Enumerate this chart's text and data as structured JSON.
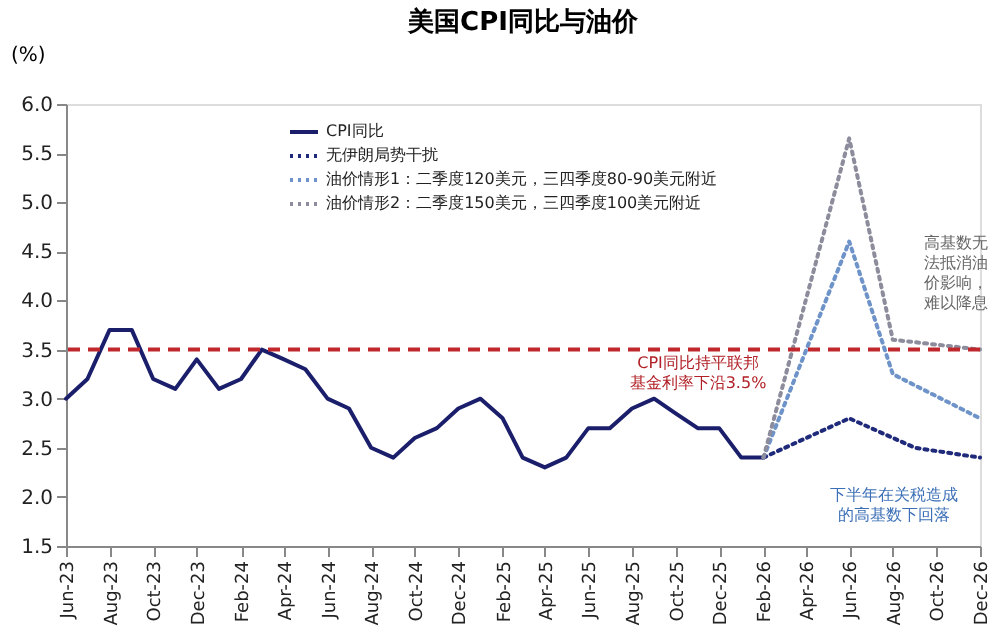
{
  "chart_data": {
    "type": "line",
    "title": "美国CPI同比与油价",
    "ylabel": "(%)",
    "xlim": [
      "2023-06",
      "2026-12"
    ],
    "xticks": [
      {
        "value": "2023-06",
        "label": "Jun-23"
      },
      {
        "value": "2023-08",
        "label": "Aug-23"
      },
      {
        "value": "2023-10",
        "label": "Oct-23"
      },
      {
        "value": "2023-12",
        "label": "Dec-23"
      },
      {
        "value": "2024-02",
        "label": "Feb-24"
      },
      {
        "value": "2024-04",
        "label": "Apr-24"
      },
      {
        "value": "2024-06",
        "label": "Jun-24"
      },
      {
        "value": "2024-08",
        "label": "Aug-24"
      },
      {
        "value": "2024-10",
        "label": "Oct-24"
      },
      {
        "value": "2024-12",
        "label": "Dec-24"
      },
      {
        "value": "2025-02",
        "label": "Feb-25"
      },
      {
        "value": "2025-04",
        "label": "Apr-25"
      },
      {
        "value": "2025-06",
        "label": "Jun-25"
      },
      {
        "value": "2025-08",
        "label": "Aug-25"
      },
      {
        "value": "2025-10",
        "label": "Oct-25"
      },
      {
        "value": "2025-12",
        "label": "Dec-25"
      },
      {
        "value": "2026-02",
        "label": "Feb-26"
      },
      {
        "value": "2026-04",
        "label": "Apr-26"
      },
      {
        "value": "2026-06",
        "label": "Jun-26"
      },
      {
        "value": "2026-08",
        "label": "Aug-26"
      },
      {
        "value": "2026-10",
        "label": "Oct-26"
      },
      {
        "value": "2026-12",
        "label": "Dec-26"
      }
    ],
    "ylim": [
      1.5,
      6.0
    ],
    "yticks": [
      {
        "value": 1.5,
        "label": "1.5"
      },
      {
        "value": 2,
        "label": "2.0"
      },
      {
        "value": 2.5,
        "label": "2.5"
      },
      {
        "value": 3,
        "label": "3.0"
      },
      {
        "value": 3.5,
        "label": "3.5"
      },
      {
        "value": 4,
        "label": "4.0"
      },
      {
        "value": 4.5,
        "label": "4.5"
      },
      {
        "value": 5,
        "label": "5.0"
      },
      {
        "value": 5.5,
        "label": "5.5"
      },
      {
        "value": 6,
        "label": "6.0"
      }
    ],
    "grid": false,
    "legend": "top",
    "series": [
      {
        "name": "CPI同比",
        "color": "#1b1f6b",
        "line_style": "solid",
        "x": [
          "2023-06",
          "2023-07",
          "2023-08",
          "2023-09",
          "2023-10",
          "2023-11",
          "2023-12",
          "2024-01",
          "2024-02",
          "2024-03",
          "2024-04",
          "2024-05",
          "2024-06",
          "2024-07",
          "2024-08",
          "2024-09",
          "2024-10",
          "2024-11",
          "2024-12",
          "2025-01",
          "2025-02",
          "2025-03",
          "2025-04",
          "2025-05",
          "2025-06",
          "2025-07",
          "2025-08",
          "2025-09",
          "2025-10",
          "2025-11",
          "2025-12",
          "2026-01",
          "2026-02"
        ],
        "values": [
          3.0,
          3.2,
          3.7,
          3.7,
          3.2,
          3.1,
          3.4,
          3.1,
          3.2,
          3.5,
          3.4,
          3.3,
          3.0,
          2.9,
          2.5,
          2.4,
          2.6,
          2.7,
          2.9,
          3.0,
          2.8,
          2.4,
          2.3,
          2.4,
          2.7,
          2.7,
          2.9,
          3.0,
          2.85,
          2.7,
          2.7,
          2.4,
          2.4
        ]
      },
      {
        "name": "无伊朗局势干扰",
        "color": "#1f2a7a",
        "line_style": "dotted",
        "x": [
          "2026-02",
          "2026-06",
          "2026-09",
          "2026-12"
        ],
        "values": [
          2.4,
          2.8,
          2.5,
          2.4
        ]
      },
      {
        "name": "油价情形1：二季度120美元，三四季度80-90美元附近",
        "color": "#6e93c9",
        "line_style": "dotted",
        "x": [
          "2026-02",
          "2026-06",
          "2026-08",
          "2026-12"
        ],
        "values": [
          2.4,
          4.6,
          3.25,
          2.8
        ]
      },
      {
        "name": "油价情形2：二季度150美元，三四季度100美元附近",
        "color": "#8c8c9c",
        "line_style": "dotted",
        "x": [
          "2026-02",
          "2026-06",
          "2026-08",
          "2026-12"
        ],
        "values": [
          2.4,
          5.65,
          3.6,
          3.5
        ]
      }
    ],
    "ref_lines": [
      {
        "axis": "y",
        "value": 3.5,
        "color": "#c0282d",
        "line_style": "dashed"
      }
    ],
    "annotations": [
      "CPI同比持平联邦基金利率下沿3.5%",
      "高基数无法抵消油价影响，难以降息",
      "下半年在关税造成的高基数下回落"
    ]
  }
}
